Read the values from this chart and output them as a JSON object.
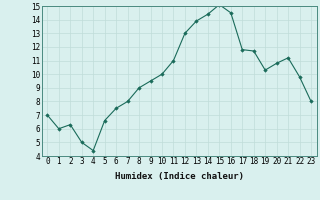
{
  "x": [
    0,
    1,
    2,
    3,
    4,
    5,
    6,
    7,
    8,
    9,
    10,
    11,
    12,
    13,
    14,
    15,
    16,
    17,
    18,
    19,
    20,
    21,
    22,
    23
  ],
  "y": [
    7.0,
    6.0,
    6.3,
    5.0,
    4.4,
    6.6,
    7.5,
    8.0,
    9.0,
    9.5,
    10.0,
    11.0,
    13.0,
    13.9,
    14.4,
    15.1,
    14.5,
    11.8,
    11.7,
    10.3,
    10.8,
    11.2,
    9.8,
    8.0
  ],
  "line_color": "#1a6b5a",
  "marker": "D",
  "marker_size": 1.8,
  "bg_color": "#d9f0ee",
  "grid_color": "#c0ddd9",
  "xlabel": "Humidex (Indice chaleur)",
  "ylim": [
    4,
    15
  ],
  "yticks": [
    4,
    5,
    6,
    7,
    8,
    9,
    10,
    11,
    12,
    13,
    14,
    15
  ],
  "xticks": [
    0,
    1,
    2,
    3,
    4,
    5,
    6,
    7,
    8,
    9,
    10,
    11,
    12,
    13,
    14,
    15,
    16,
    17,
    18,
    19,
    20,
    21,
    22,
    23
  ],
  "tick_fontsize": 5.5,
  "label_fontsize": 6.5,
  "linewidth": 0.8
}
